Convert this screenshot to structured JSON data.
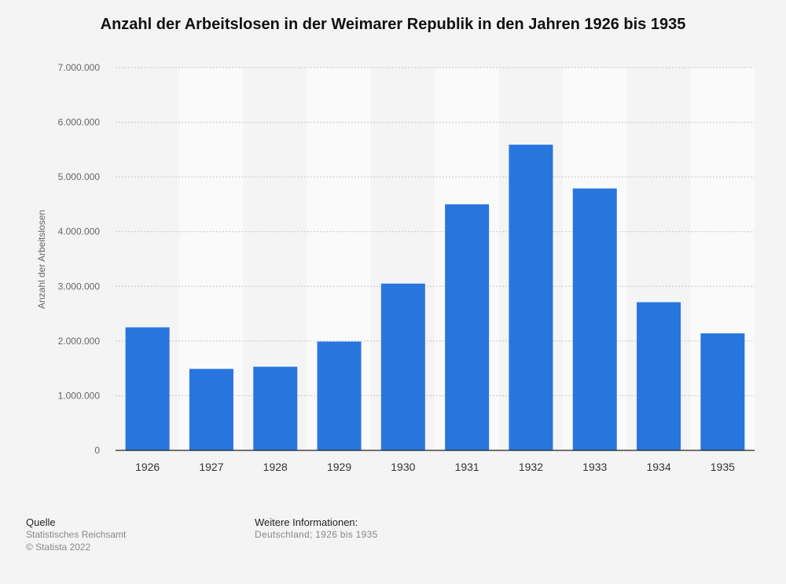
{
  "chart_data": {
    "type": "bar",
    "title": "Anzahl der Arbeitslosen in der Weimarer Republik in den Jahren 1926 bis 1935",
    "ylabel": "Anzahl der Arbeitslosen",
    "xlabel": "",
    "categories": [
      "1926",
      "1927",
      "1928",
      "1929",
      "1930",
      "1931",
      "1932",
      "1933",
      "1934",
      "1935"
    ],
    "values": [
      2250000,
      1490000,
      1530000,
      1990000,
      3050000,
      4500000,
      5590000,
      4790000,
      2710000,
      2140000
    ],
    "ylim": [
      0,
      7000000
    ],
    "yticks": [
      0,
      1000000,
      2000000,
      3000000,
      4000000,
      5000000,
      6000000,
      7000000
    ],
    "ytick_labels": [
      "0",
      "1.000.000",
      "2.000.000",
      "3.000.000",
      "4.000.000",
      "5.000.000",
      "6.000.000",
      "7.000.000"
    ],
    "bar_color": "#2876dd",
    "grid": true
  },
  "footer": {
    "source_heading": "Quelle",
    "source_lines": [
      "Statistisches Reichsamt",
      "© Statista 2022"
    ],
    "info_heading": "Weitere Informationen:",
    "info_text": "Deutschland; 1926 bis 1935"
  }
}
